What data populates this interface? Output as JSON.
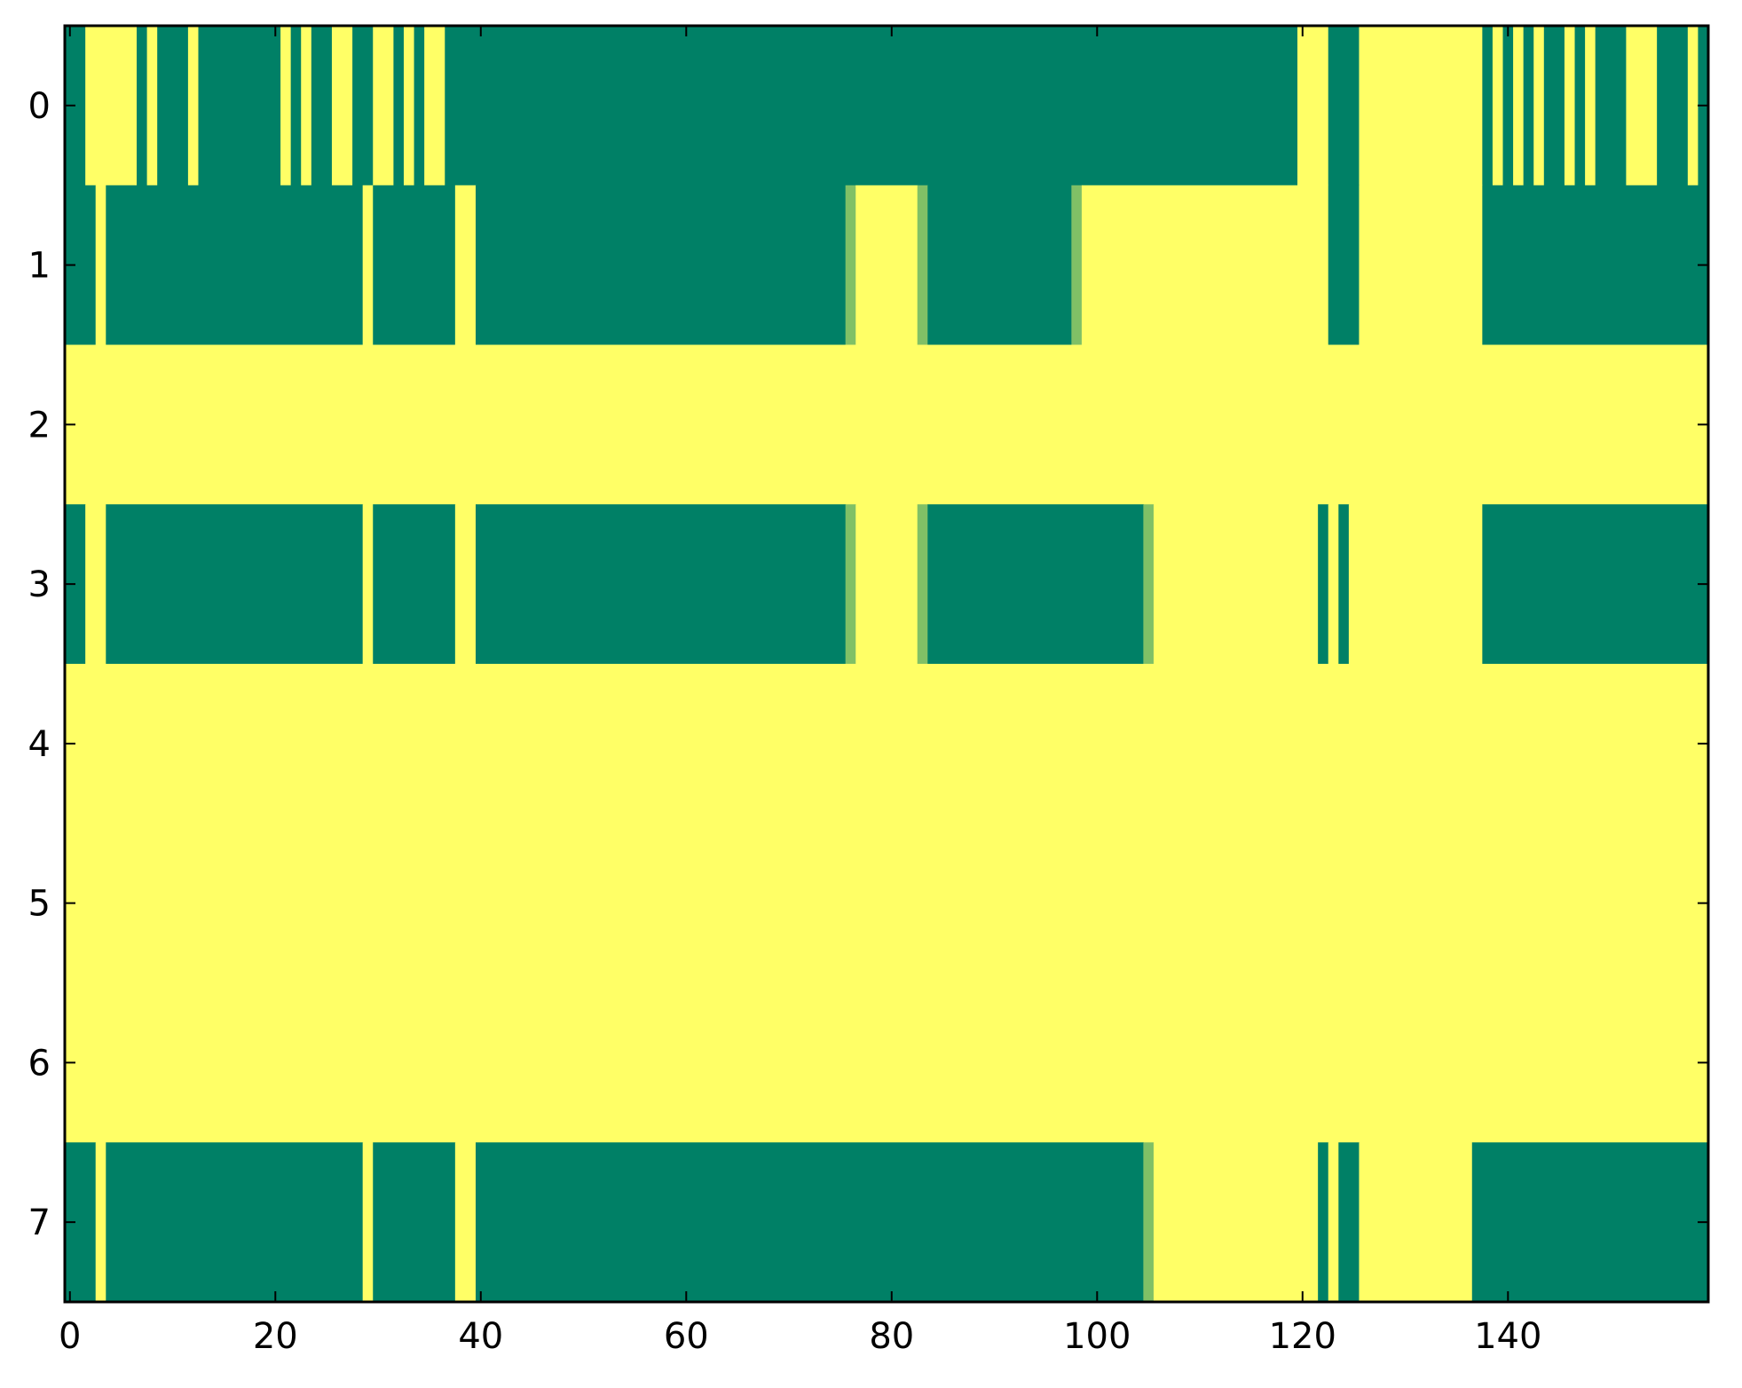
{
  "chart_data": {
    "type": "heatmap",
    "title": "",
    "xlabel": "",
    "ylabel": "",
    "xlim": [
      -0.5,
      159.5
    ],
    "ylim": [
      7.5,
      -0.5
    ],
    "n_cols": 160,
    "n_rows": 8,
    "xticks": [
      0,
      20,
      40,
      60,
      80,
      100,
      120,
      140
    ],
    "yticks": [
      0,
      1,
      2,
      3,
      4,
      5,
      6,
      7
    ],
    "value_range": [
      0,
      1
    ],
    "colormap": {
      "low": "#008066",
      "mid": "#80c066",
      "high": "#ffff66"
    },
    "grid": false,
    "legend": "none",
    "rows": [
      {
        "row": 0,
        "runs": [
          [
            0,
            1,
            0
          ],
          [
            2,
            6,
            1
          ],
          [
            7,
            7,
            0
          ],
          [
            8,
            8,
            1
          ],
          [
            9,
            11,
            0
          ],
          [
            12,
            12,
            1
          ],
          [
            13,
            20,
            0
          ],
          [
            21,
            21,
            1
          ],
          [
            22,
            22,
            0
          ],
          [
            23,
            23,
            1
          ],
          [
            24,
            25,
            0
          ],
          [
            26,
            27,
            1
          ],
          [
            28,
            29,
            0
          ],
          [
            30,
            31,
            1
          ],
          [
            32,
            32,
            0
          ],
          [
            33,
            33,
            1
          ],
          [
            34,
            34,
            0
          ],
          [
            35,
            36,
            1
          ],
          [
            37,
            39,
            0
          ],
          [
            40,
            119,
            0
          ],
          [
            120,
            122,
            1
          ],
          [
            123,
            125,
            0
          ],
          [
            126,
            137,
            1
          ],
          [
            138,
            138,
            0
          ],
          [
            139,
            139,
            1
          ],
          [
            140,
            140,
            0
          ],
          [
            141,
            141,
            1
          ],
          [
            142,
            142,
            0
          ],
          [
            143,
            143,
            1
          ],
          [
            144,
            145,
            0
          ],
          [
            146,
            146,
            1
          ],
          [
            147,
            147,
            0
          ],
          [
            148,
            148,
            1
          ],
          [
            149,
            151,
            0
          ],
          [
            152,
            154,
            1
          ],
          [
            155,
            157,
            0
          ],
          [
            158,
            158,
            1
          ],
          [
            159,
            159,
            0
          ]
        ]
      },
      {
        "row": 1,
        "runs": [
          [
            0,
            2,
            0
          ],
          [
            3,
            3,
            1
          ],
          [
            4,
            28,
            0
          ],
          [
            29,
            29,
            1
          ],
          [
            30,
            37,
            0
          ],
          [
            38,
            39,
            1
          ],
          [
            40,
            75,
            0
          ],
          [
            76,
            76,
            0.5
          ],
          [
            77,
            82,
            1
          ],
          [
            83,
            83,
            0.5
          ],
          [
            84,
            97,
            0
          ],
          [
            98,
            98,
            0.5
          ],
          [
            99,
            122,
            1
          ],
          [
            123,
            125,
            0
          ],
          [
            126,
            137,
            1
          ],
          [
            138,
            159,
            0
          ]
        ]
      },
      {
        "row": 2,
        "runs": [
          [
            0,
            159,
            1
          ]
        ]
      },
      {
        "row": 3,
        "runs": [
          [
            0,
            1,
            0
          ],
          [
            2,
            3,
            1
          ],
          [
            4,
            28,
            0
          ],
          [
            29,
            29,
            1
          ],
          [
            30,
            37,
            0
          ],
          [
            38,
            39,
            1
          ],
          [
            40,
            75,
            0
          ],
          [
            76,
            76,
            0.5
          ],
          [
            77,
            82,
            1
          ],
          [
            83,
            83,
            0.5
          ],
          [
            84,
            104,
            0
          ],
          [
            105,
            105,
            0.5
          ],
          [
            106,
            121,
            1
          ],
          [
            122,
            122,
            0
          ],
          [
            123,
            123,
            1
          ],
          [
            124,
            124,
            0
          ],
          [
            125,
            137,
            1
          ],
          [
            138,
            159,
            0
          ]
        ]
      },
      {
        "row": 4,
        "runs": [
          [
            0,
            159,
            1
          ]
        ]
      },
      {
        "row": 5,
        "runs": [
          [
            0,
            159,
            1
          ]
        ]
      },
      {
        "row": 6,
        "runs": [
          [
            0,
            159,
            1
          ]
        ]
      },
      {
        "row": 7,
        "runs": [
          [
            0,
            2,
            0
          ],
          [
            3,
            3,
            1
          ],
          [
            4,
            28,
            0
          ],
          [
            29,
            29,
            1
          ],
          [
            30,
            37,
            0
          ],
          [
            38,
            39,
            1
          ],
          [
            40,
            104,
            0
          ],
          [
            105,
            105,
            0.5
          ],
          [
            106,
            121,
            1
          ],
          [
            122,
            122,
            0
          ],
          [
            123,
            123,
            1
          ],
          [
            124,
            125,
            0
          ],
          [
            126,
            136,
            1
          ],
          [
            137,
            159,
            0
          ]
        ]
      }
    ]
  }
}
